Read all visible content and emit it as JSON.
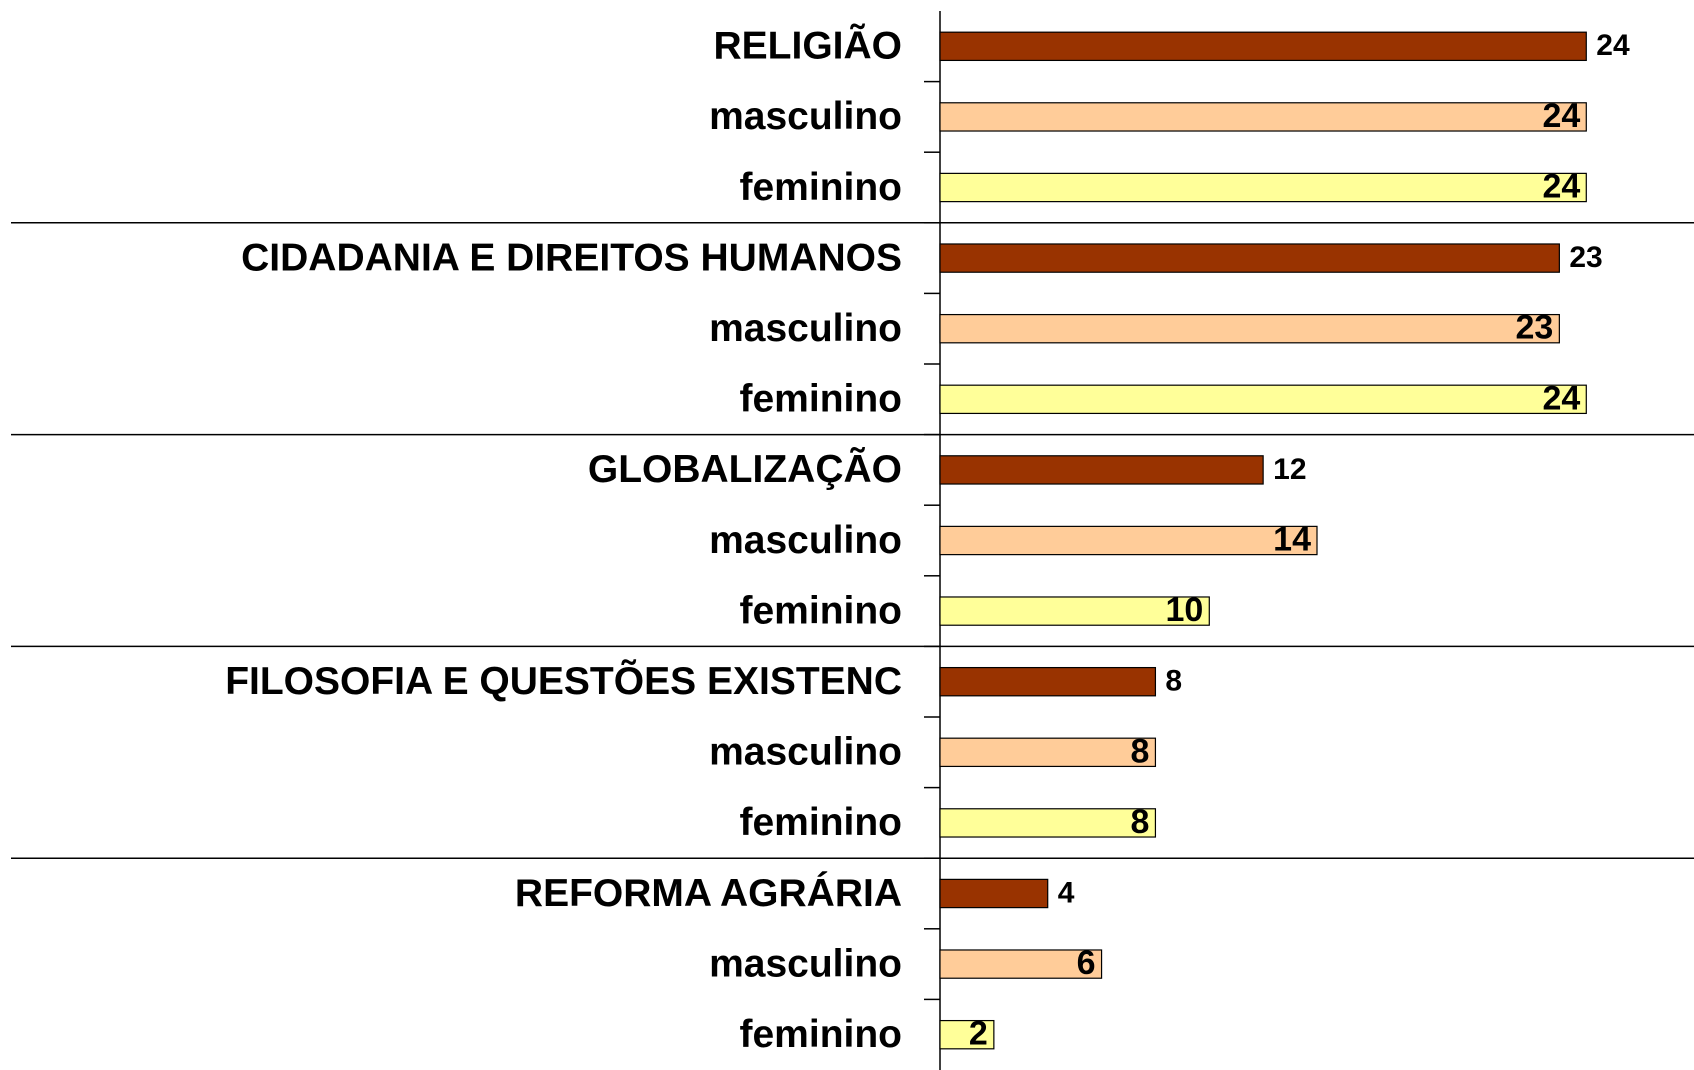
{
  "chart_data": {
    "type": "barh",
    "categories": [
      "RELIGIÃO",
      "masculino",
      "feminino",
      "CIDADANIA E DIREITOS HUMANOS",
      "masculino",
      "feminino",
      "GLOBALIZAÇÃO",
      "masculino",
      "feminino",
      "FILOSOFIA E QUESTÕES EXISTENC",
      "masculino",
      "feminino",
      "REFORMA AGRÁRIA",
      "masculino",
      "feminino"
    ],
    "values": [
      24,
      24,
      24,
      23,
      23,
      24,
      12,
      14,
      10,
      8,
      8,
      8,
      4,
      6,
      2
    ],
    "colors": [
      "#993300",
      "#ffcc99",
      "#ffff99",
      "#993300",
      "#ffcc99",
      "#ffff99",
      "#993300",
      "#ffcc99",
      "#ffff99",
      "#993300",
      "#ffcc99",
      "#ffff99",
      "#993300",
      "#ffcc99",
      "#ffff99"
    ],
    "xlim": [
      0,
      28
    ]
  }
}
